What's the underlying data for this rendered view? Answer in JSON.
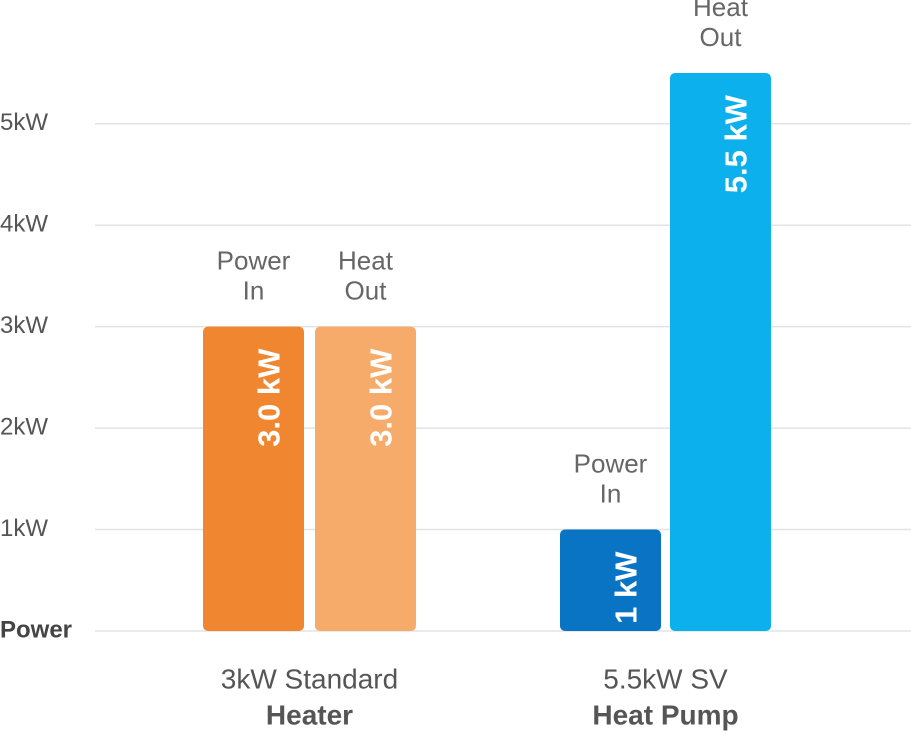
{
  "chart_data": {
    "type": "bar",
    "categories": [
      [
        "Power",
        "In"
      ],
      [
        "Heat",
        "Out"
      ],
      [
        "Power",
        "In"
      ],
      [
        "Heat",
        "Out"
      ]
    ],
    "values": [
      3,
      3,
      1,
      5.5
    ],
    "value_labels": [
      "3.0 kW",
      "3.0 kW",
      "1 kW",
      "5.5 kW"
    ],
    "colors": [
      "#f0862f",
      "#f7ab6a",
      "#0a74c4",
      "#0bb0ec"
    ],
    "groups": [
      [
        "3kW Standard",
        "Heater"
      ],
      [
        "5.5kW SV",
        "Heat Pump"
      ]
    ],
    "ylim": [
      0,
      6.22
    ],
    "yticks": [
      {
        "value": 0,
        "label": "Power"
      },
      {
        "value": 1,
        "label": "1kW"
      },
      {
        "value": 2,
        "label": "2kW"
      },
      {
        "value": 3,
        "label": "3kW"
      },
      {
        "value": 4,
        "label": "4kW"
      },
      {
        "value": 5,
        "label": "5kW"
      }
    ],
    "grid": true
  }
}
